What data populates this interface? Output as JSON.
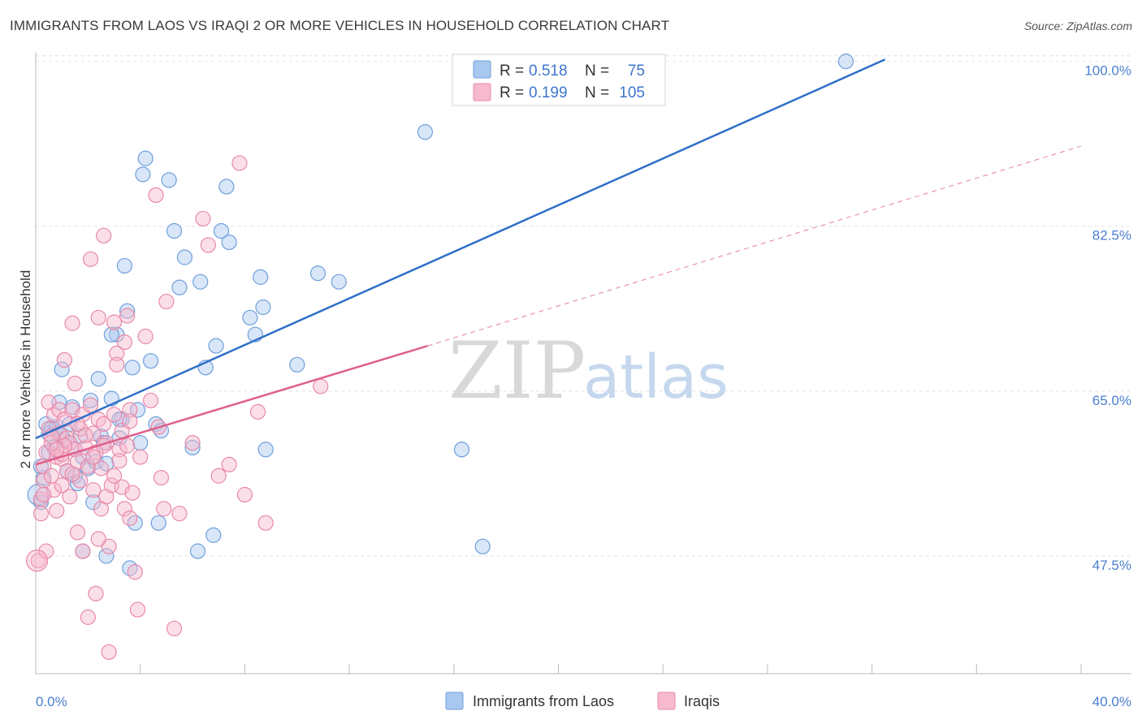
{
  "header": {
    "title": "IMMIGRANTS FROM LAOS VS IRAQI 2 OR MORE VEHICLES IN HOUSEHOLD CORRELATION CHART",
    "source": "Source: ZipAtlas.com"
  },
  "watermark": {
    "zip": "ZIP",
    "atlas": "atlas"
  },
  "legend": {
    "r_label": "R =",
    "n_label": "N =",
    "rows": [
      {
        "r": "0.518",
        "n": "75",
        "color": "#a9c8f0",
        "edge": "#6f9fdc"
      },
      {
        "r": "0.199",
        "n": "105",
        "color": "#f6b9cd",
        "edge": "#e889a9"
      }
    ]
  },
  "chart_data": {
    "type": "scatter",
    "title": "IMMIGRANTS FROM LAOS VS IRAQI 2 OR MORE VEHICLES IN HOUSEHOLD CORRELATION CHART",
    "xlabel": "",
    "ylabel": "2 or more Vehicles in Household",
    "xlim": [
      0,
      40
    ],
    "ylim": [
      35,
      101
    ],
    "x_tick_labels": [
      "0.0%",
      "40.0%"
    ],
    "y_ticks": [
      47.5,
      65.0,
      82.5,
      100.0
    ],
    "y_tick_labels": [
      "47.5%",
      "65.0%",
      "82.5%",
      "100.0%"
    ],
    "grid": true,
    "legend_position": "top-center",
    "series": [
      {
        "name": "Immigrants from Laos",
        "color": "#a9c8f0",
        "edge": "#6f9fdc",
        "trend": {
          "x": [
            0,
            32.5
          ],
          "y": [
            60.0,
            100.2
          ],
          "color": "#2f6fc8",
          "dashed_extension": false
        },
        "points": [
          [
            0.3,
            55.8
          ],
          [
            0.4,
            61.5
          ],
          [
            0.5,
            60.5
          ],
          [
            0.6,
            61.0
          ],
          [
            0.7,
            59.0
          ],
          [
            0.8,
            61.2
          ],
          [
            0.9,
            63.8
          ],
          [
            1.0,
            67.3
          ],
          [
            1.1,
            59.8
          ],
          [
            1.2,
            56.5
          ],
          [
            1.3,
            61.5
          ],
          [
            1.4,
            63.3
          ],
          [
            1.5,
            58.8
          ],
          [
            1.5,
            56.0
          ],
          [
            1.6,
            55.2
          ],
          [
            1.7,
            60.2
          ],
          [
            1.8,
            58.0
          ],
          [
            1.8,
            48.0
          ],
          [
            2.0,
            56.8
          ],
          [
            2.1,
            64.0
          ],
          [
            2.2,
            53.2
          ],
          [
            2.3,
            57.5
          ],
          [
            2.4,
            66.3
          ],
          [
            2.5,
            60.2
          ],
          [
            2.6,
            59.5
          ],
          [
            2.7,
            57.3
          ],
          [
            2.7,
            47.5
          ],
          [
            2.9,
            64.2
          ],
          [
            3.1,
            71.0
          ],
          [
            3.2,
            60.0
          ],
          [
            3.3,
            62.0
          ],
          [
            3.4,
            78.3
          ],
          [
            3.5,
            73.5
          ],
          [
            3.6,
            46.2
          ],
          [
            3.7,
            67.5
          ],
          [
            3.8,
            51.0
          ],
          [
            3.9,
            63.0
          ],
          [
            4.0,
            59.5
          ],
          [
            4.1,
            88.0
          ],
          [
            4.2,
            89.7
          ],
          [
            4.4,
            68.2
          ],
          [
            4.6,
            61.5
          ],
          [
            4.7,
            51.0
          ],
          [
            4.8,
            60.8
          ],
          [
            5.1,
            87.4
          ],
          [
            5.3,
            82.0
          ],
          [
            5.5,
            76.0
          ],
          [
            5.7,
            79.2
          ],
          [
            6.2,
            48.0
          ],
          [
            6.3,
            76.6
          ],
          [
            6.5,
            67.5
          ],
          [
            6.8,
            49.7
          ],
          [
            6.9,
            69.8
          ],
          [
            7.1,
            82.0
          ],
          [
            7.3,
            86.7
          ],
          [
            7.4,
            80.8
          ],
          [
            8.2,
            72.8
          ],
          [
            8.4,
            71.0
          ],
          [
            8.6,
            77.1
          ],
          [
            8.7,
            73.9
          ],
          [
            8.8,
            58.8
          ],
          [
            10.0,
            67.8
          ],
          [
            10.8,
            77.5
          ],
          [
            11.6,
            76.6
          ],
          [
            14.9,
            92.5
          ],
          [
            16.3,
            58.8
          ],
          [
            17.1,
            48.5
          ],
          [
            31.0,
            100.0
          ],
          [
            0.2,
            57.0
          ],
          [
            0.2,
            53.2
          ],
          [
            0.5,
            58.5
          ],
          [
            1.0,
            60.3
          ],
          [
            2.9,
            71.0
          ],
          [
            6.0,
            59.0
          ],
          [
            3.2,
            62.0
          ]
        ]
      },
      {
        "name": "Iraqis",
        "color": "#f6b9cd",
        "edge": "#e889a9",
        "trend": {
          "x": [
            0,
            15.0
          ],
          "y": [
            57.2,
            69.8
          ],
          "color": "#e0608a",
          "dashed_extension": true,
          "dash_to": [
            40,
            91.0
          ]
        },
        "points": [
          [
            0.1,
            47.0
          ],
          [
            0.2,
            53.5
          ],
          [
            0.2,
            52.0
          ],
          [
            0.3,
            55.5
          ],
          [
            0.3,
            57.0
          ],
          [
            0.4,
            58.5
          ],
          [
            0.5,
            61.0
          ],
          [
            0.5,
            63.8
          ],
          [
            0.6,
            56.0
          ],
          [
            0.6,
            59.5
          ],
          [
            0.7,
            62.5
          ],
          [
            0.7,
            54.5
          ],
          [
            0.8,
            58.0
          ],
          [
            0.8,
            52.3
          ],
          [
            0.9,
            60.5
          ],
          [
            0.9,
            63.0
          ],
          [
            1.0,
            57.8
          ],
          [
            1.0,
            55.0
          ],
          [
            1.1,
            68.3
          ],
          [
            1.1,
            62.0
          ],
          [
            1.2,
            60.0
          ],
          [
            1.2,
            56.5
          ],
          [
            1.3,
            59.5
          ],
          [
            1.3,
            53.8
          ],
          [
            1.4,
            72.2
          ],
          [
            1.4,
            63.0
          ],
          [
            1.5,
            65.8
          ],
          [
            1.5,
            58.8
          ],
          [
            1.6,
            57.5
          ],
          [
            1.6,
            50.0
          ],
          [
            1.7,
            61.0
          ],
          [
            1.7,
            55.5
          ],
          [
            1.8,
            62.5
          ],
          [
            1.8,
            48.0
          ],
          [
            1.9,
            59.0
          ],
          [
            2.0,
            57.0
          ],
          [
            2.0,
            41.0
          ],
          [
            2.1,
            63.5
          ],
          [
            2.1,
            79.0
          ],
          [
            2.2,
            60.5
          ],
          [
            2.2,
            54.5
          ],
          [
            2.3,
            58.5
          ],
          [
            2.3,
            43.5
          ],
          [
            2.4,
            72.8
          ],
          [
            2.4,
            62.0
          ],
          [
            2.5,
            56.8
          ],
          [
            2.5,
            52.5
          ],
          [
            2.6,
            81.5
          ],
          [
            2.6,
            61.5
          ],
          [
            2.7,
            59.5
          ],
          [
            2.7,
            53.8
          ],
          [
            2.8,
            48.5
          ],
          [
            2.8,
            37.3
          ],
          [
            2.9,
            55.0
          ],
          [
            3.0,
            62.5
          ],
          [
            3.0,
            72.3
          ],
          [
            3.1,
            69.0
          ],
          [
            3.1,
            67.8
          ],
          [
            3.2,
            58.8
          ],
          [
            3.3,
            60.8
          ],
          [
            3.3,
            54.8
          ],
          [
            3.4,
            70.2
          ],
          [
            3.4,
            52.5
          ],
          [
            3.5,
            59.2
          ],
          [
            3.5,
            73.0
          ],
          [
            3.6,
            51.5
          ],
          [
            3.6,
            63.0
          ],
          [
            3.7,
            54.2
          ],
          [
            3.8,
            45.8
          ],
          [
            3.9,
            41.8
          ],
          [
            4.0,
            58.0
          ],
          [
            4.2,
            70.8
          ],
          [
            4.4,
            64.0
          ],
          [
            4.6,
            85.8
          ],
          [
            4.7,
            61.2
          ],
          [
            4.8,
            55.8
          ],
          [
            5.0,
            74.5
          ],
          [
            5.3,
            39.8
          ],
          [
            5.5,
            52.0
          ],
          [
            6.0,
            59.5
          ],
          [
            6.4,
            83.3
          ],
          [
            6.6,
            80.5
          ],
          [
            7.0,
            56.0
          ],
          [
            7.4,
            57.2
          ],
          [
            7.8,
            89.2
          ],
          [
            8.0,
            54.0
          ],
          [
            8.5,
            62.8
          ],
          [
            8.8,
            51.0
          ],
          [
            10.9,
            65.5
          ],
          [
            0.3,
            54.0
          ],
          [
            0.6,
            60.2
          ],
          [
            1.0,
            58.3
          ],
          [
            1.4,
            56.2
          ],
          [
            1.9,
            60.3
          ],
          [
            2.2,
            58.0
          ],
          [
            2.6,
            59.2
          ],
          [
            3.0,
            56.0
          ],
          [
            3.2,
            57.6
          ],
          [
            1.1,
            59.2
          ],
          [
            0.8,
            58.8
          ],
          [
            1.6,
            61.5
          ],
          [
            2.4,
            49.3
          ],
          [
            0.4,
            48.0
          ],
          [
            3.6,
            61.8
          ],
          [
            4.9,
            52.5
          ]
        ]
      }
    ]
  },
  "bottom_legend": [
    {
      "label": "Immigrants from Laos",
      "color": "#a9c8f0",
      "edge": "#6f9fdc"
    },
    {
      "label": "Iraqis",
      "color": "#f6b9cd",
      "edge": "#e889a9"
    }
  ]
}
